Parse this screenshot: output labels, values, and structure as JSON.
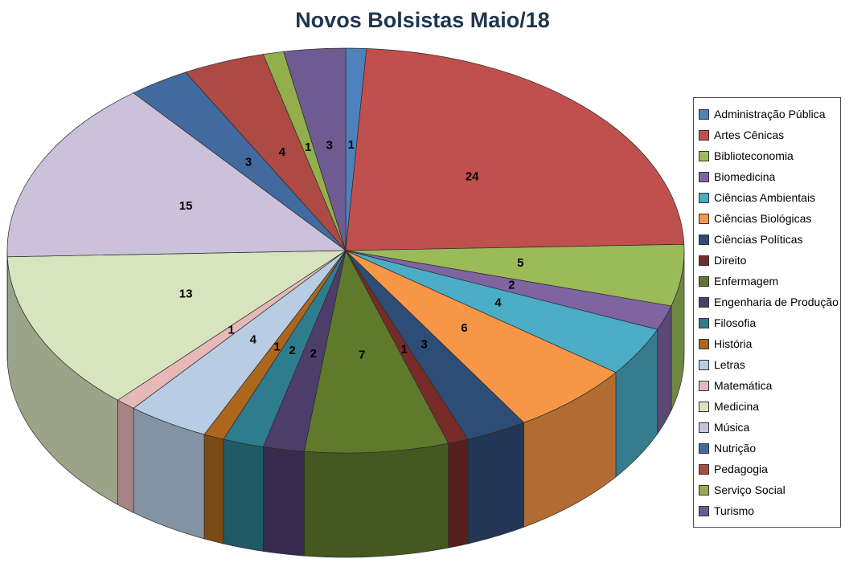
{
  "chart_data": {
    "type": "pie",
    "effect": "3d",
    "title": "Novos Bolsistas Maio/18",
    "title_color": "#1F3550",
    "background_color": "#FFFFFF",
    "legend_position": "right",
    "labels_shown": "values",
    "start_angle_deg": 0,
    "direction": "clockwise",
    "total": 102,
    "categories": [
      "Administração Pública",
      "Artes Cênicas",
      "Biblioteconomia",
      "Biomedicina",
      "Ciências Ambientais",
      "Ciências Biológicas",
      "Ciências Políticas",
      "Direito",
      "Enfermagem",
      "Engenharia de Produção",
      "Filosofia",
      "História",
      "Letras",
      "Matemática",
      "Medicina",
      "Música",
      "Nutrição",
      "Pedagogia",
      "Serviço Social",
      "Turismo"
    ],
    "values": [
      1,
      24,
      5,
      2,
      4,
      6,
      3,
      1,
      7,
      2,
      2,
      1,
      4,
      1,
      13,
      15,
      3,
      4,
      1,
      3
    ],
    "colors": [
      "#4F81BD",
      "#C0504D",
      "#9BBB59",
      "#8064A2",
      "#4BACC6",
      "#F79646",
      "#2E4D76",
      "#772C2A",
      "#5F7A2B",
      "#4D3D6B",
      "#2E7D8F",
      "#AC671D",
      "#B8CCE4",
      "#E6B9B8",
      "#D7E4BD",
      "#CCC1DA",
      "#436A9E",
      "#AD4A44",
      "#92AF4B",
      "#6F5B92"
    ]
  }
}
